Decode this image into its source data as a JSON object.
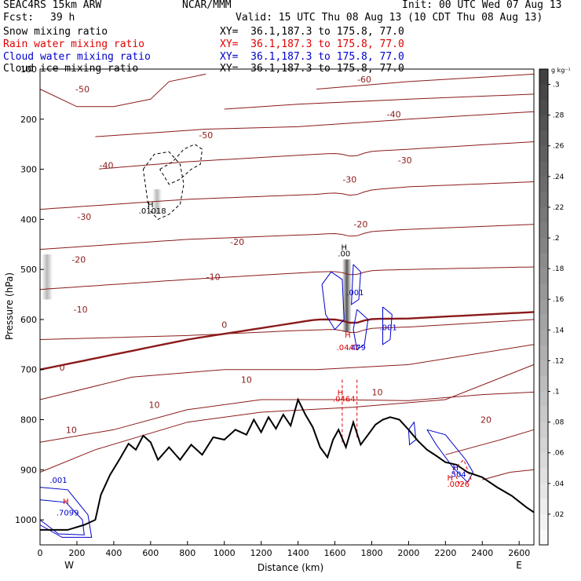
{
  "header": {
    "model": "SEAC4RS 15km ARW",
    "org": "NCAR/MMM",
    "init": "Init: 00 UTC Wed 07 Aug 13",
    "fcst_label": "Fcst:",
    "fcst_value": "39 h",
    "valid": "Valid: 15 UTC Thu 08 Aug 13 (10 CDT Thu 08 Aug 13)"
  },
  "fields": [
    {
      "name": "Snow mixing ratio",
      "xy": "XY=  36.1,187.3 to 175.8, 77.0",
      "color": "#000000"
    },
    {
      "name": "Rain water mixing ratio",
      "xy": "XY=  36.1,187.3 to 175.8, 77.0",
      "color": "#e00000"
    },
    {
      "name": "Cloud water mixing ratio",
      "xy": "XY=  36.1,187.3 to 175.8, 77.0",
      "color": "#0000cc"
    },
    {
      "name": "Cloud ice mixing ratio",
      "xy": "XY=  36.1,187.3 to 175.8, 77.0",
      "color": "#000000"
    }
  ],
  "chart_data": {
    "type": "cross-section",
    "xlabel": "Distance (km)",
    "ylabel": "Pressure (hPa)",
    "xlim": [
      0,
      2680
    ],
    "ylim": [
      1050,
      100
    ],
    "x_ticks": [
      0,
      200,
      400,
      600,
      800,
      1000,
      1200,
      1400,
      1600,
      1800,
      2000,
      2200,
      2400,
      2600
    ],
    "y_ticks": [
      100,
      200,
      300,
      400,
      500,
      600,
      700,
      800,
      900,
      1000
    ],
    "left_end_label": "W",
    "right_end_label": "E",
    "colorbar": {
      "unit": "g kg⁻¹",
      "ticks": [
        ".3",
        ".28",
        ".26",
        ".24",
        ".22",
        ".2",
        ".18",
        ".16",
        ".14",
        ".12",
        ".1",
        ".08",
        ".06",
        ".04",
        ".02"
      ],
      "range": [
        0,
        0.31
      ]
    },
    "temperature_contours": [
      {
        "value": "-60",
        "x": 1760,
        "p": 120
      },
      {
        "value": "-50",
        "x": 230,
        "p": 140
      },
      {
        "value": "-50",
        "x": 900,
        "p": 232
      },
      {
        "value": "-40",
        "x": 1920,
        "p": 190
      },
      {
        "value": "-40",
        "x": 360,
        "p": 292
      },
      {
        "value": "-30",
        "x": 1980,
        "p": 282
      },
      {
        "value": "-30",
        "x": 1680,
        "p": 320
      },
      {
        "value": "-30",
        "x": 240,
        "p": 395
      },
      {
        "value": "-20",
        "x": 1740,
        "p": 410
      },
      {
        "value": "-20",
        "x": 1070,
        "p": 445
      },
      {
        "value": "-20",
        "x": 210,
        "p": 480
      },
      {
        "value": "-10",
        "x": 940,
        "p": 515
      },
      {
        "value": "-10",
        "x": 220,
        "p": 580
      },
      {
        "value": "0",
        "x": 1000,
        "p": 610
      },
      {
        "value": "0",
        "x": 120,
        "p": 696
      },
      {
        "value": "10",
        "x": 1120,
        "p": 720
      },
      {
        "value": "10",
        "x": 1830,
        "p": 745
      },
      {
        "value": "10",
        "x": 620,
        "p": 770
      },
      {
        "value": "10",
        "x": 170,
        "p": 820
      },
      {
        "value": "20",
        "x": 2420,
        "p": 800
      }
    ],
    "mixing_ratio_labels": [
      {
        "text": "H",
        "x": 600,
        "p": 370,
        "color": "#000000"
      },
      {
        "text": ".01018",
        "x": 610,
        "p": 382,
        "color": "#000000"
      },
      {
        "text": "H",
        "x": 1650,
        "p": 455,
        "color": "#000000"
      },
      {
        "text": ".00",
        "x": 1650,
        "p": 468,
        "color": "#000000"
      },
      {
        "text": ".001",
        "x": 1710,
        "p": 545,
        "color": "#0000cc"
      },
      {
        "text": ".001",
        "x": 1890,
        "p": 615,
        "color": "#0000cc"
      },
      {
        "text": ".001",
        "x": 100,
        "p": 920,
        "color": "#0000cc"
      },
      {
        "text": "H",
        "x": 1670,
        "p": 630,
        "color": "#e00000"
      },
      {
        "text": ".0447",
        "x": 1670,
        "p": 655,
        "color": "#e00000"
      },
      {
        "text": ".479",
        "x": 1720,
        "p": 655,
        "color": "#0000cc"
      },
      {
        "text": "H",
        "x": 1630,
        "p": 745,
        "color": "#e00000"
      },
      {
        "text": ".0464",
        "x": 1650,
        "p": 758,
        "color": "#e00000"
      },
      {
        "text": "H",
        "x": 2255,
        "p": 895,
        "color": "#0000cc"
      },
      {
        "text": ".504",
        "x": 2265,
        "p": 908,
        "color": "#0000cc"
      },
      {
        "text": "H",
        "x": 2225,
        "p": 915,
        "color": "#e00000"
      },
      {
        "text": ".0026",
        "x": 2270,
        "p": 928,
        "color": "#e00000"
      },
      {
        "text": "H",
        "x": 140,
        "p": 962,
        "color": "#e00000"
      },
      {
        "text": ".7099",
        "x": 150,
        "p": 985,
        "color": "#0000cc"
      }
    ]
  }
}
